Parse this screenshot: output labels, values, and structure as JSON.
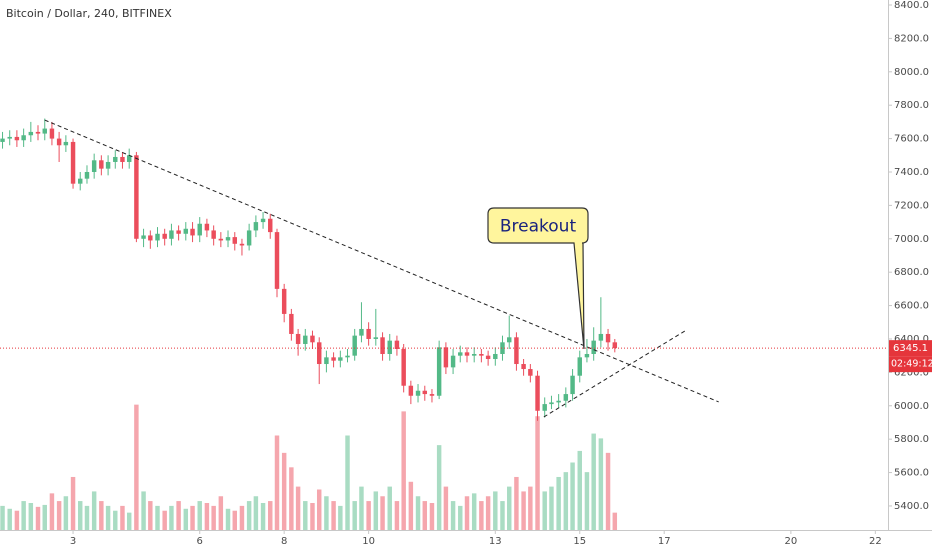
{
  "chart_data": {
    "type": "candlestick",
    "title": "Bitcoin / Dollar, 240, BITFINEX",
    "xlim": [
      1.27,
      22.3
    ],
    "xticks": [
      3,
      6,
      8,
      10,
      13,
      15,
      17,
      20,
      22
    ],
    "ylim": [
      5256,
      8430
    ],
    "yticks": [
      {
        "value": 5400,
        "label": "5400.0"
      },
      {
        "value": 5600,
        "label": "5600.0"
      },
      {
        "value": 5800,
        "label": "5800.0"
      },
      {
        "value": 6000,
        "label": "6000.0"
      },
      {
        "value": 6200,
        "label": "6200.0"
      },
      {
        "value": 6400,
        "label": "6400.0"
      },
      {
        "value": 6600,
        "label": "6600.0"
      },
      {
        "value": 6800,
        "label": "6800.0"
      },
      {
        "value": 7000,
        "label": "7000.0"
      },
      {
        "value": 7200,
        "label": "7200.0"
      },
      {
        "value": 7400,
        "label": "7400.0"
      },
      {
        "value": 7600,
        "label": "7600.0"
      },
      {
        "value": 7800,
        "label": "7800.0"
      },
      {
        "value": 8000,
        "label": "8000.0"
      },
      {
        "value": 8200,
        "label": "8200.0"
      },
      {
        "value": 8400,
        "label": "8400.0"
      }
    ],
    "up_color": "#53b987",
    "down_color": "#eb4d5c",
    "x": [
      1.33,
      1.5,
      1.67,
      1.83,
      2,
      2.17,
      2.33,
      2.5,
      2.67,
      2.83,
      3,
      3.17,
      3.33,
      3.5,
      3.67,
      3.83,
      4,
      4.17,
      4.33,
      4.5,
      4.67,
      4.83,
      5,
      5.17,
      5.33,
      5.5,
      5.67,
      5.83,
      6,
      6.17,
      6.33,
      6.5,
      6.67,
      6.83,
      7,
      7.17,
      7.33,
      7.5,
      7.67,
      7.83,
      8,
      8.17,
      8.33,
      8.5,
      8.67,
      8.83,
      9,
      9.17,
      9.33,
      9.5,
      9.67,
      9.83,
      10,
      10.17,
      10.33,
      10.5,
      10.67,
      10.83,
      11,
      11.17,
      11.33,
      11.5,
      11.67,
      11.83,
      12,
      12.17,
      12.33,
      12.5,
      12.67,
      12.83,
      13,
      13.17,
      13.33,
      13.5,
      13.67,
      13.83,
      14,
      14.17,
      14.33,
      14.5,
      14.67,
      14.83,
      15,
      15.17,
      15.33,
      15.5,
      15.67,
      15.83
    ],
    "open": [
      7580,
      7600,
      7610,
      7590,
      7620,
      7640,
      7630,
      7660,
      7600,
      7560,
      7580,
      7330,
      7360,
      7400,
      7470,
      7420,
      7460,
      7490,
      7460,
      7500,
      7000,
      7020,
      6990,
      7030,
      7000,
      7050,
      7030,
      7060,
      7020,
      7090,
      7050,
      7000,
      6990,
      7010,
      6970,
      6960,
      7050,
      7100,
      7120,
      7040,
      6700,
      6550,
      6430,
      6370,
      6420,
      6380,
      6250,
      6290,
      6270,
      6290,
      6300,
      6420,
      6460,
      6400,
      6410,
      6310,
      6390,
      6340,
      6120,
      6060,
      6090,
      6070,
      6060,
      6350,
      6230,
      6300,
      6320,
      6300,
      6310,
      6300,
      6280,
      6310,
      6380,
      6410,
      6250,
      6220,
      6180,
      5970,
      6010,
      6020,
      6030,
      6070,
      6180,
      6290,
      6310,
      6390,
      6430,
      6380
    ],
    "high": [
      7640,
      7650,
      7650,
      7660,
      7700,
      7680,
      7720,
      7700,
      7640,
      7620,
      7600,
      7400,
      7440,
      7510,
      7500,
      7500,
      7530,
      7520,
      7540,
      7520,
      7060,
      7050,
      7070,
      7060,
      7090,
      7080,
      7100,
      7100,
      7130,
      7120,
      7080,
      7040,
      7050,
      7040,
      7000,
      7090,
      7140,
      7160,
      7150,
      7060,
      6730,
      6580,
      6460,
      6460,
      6450,
      6410,
      6330,
      6320,
      6330,
      6340,
      6460,
      6620,
      6500,
      6580,
      6440,
      6430,
      6420,
      6370,
      6150,
      6130,
      6120,
      6100,
      6390,
      6380,
      6340,
      6360,
      6350,
      6350,
      6340,
      6330,
      6350,
      6420,
      6540,
      6440,
      6280,
      6250,
      6210,
      6050,
      6060,
      6070,
      6110,
      6220,
      6330,
      6400,
      6470,
      6650,
      6460,
      6400
    ],
    "low": [
      7540,
      7560,
      7550,
      7550,
      7580,
      7590,
      7590,
      7560,
      7460,
      7520,
      7300,
      7290,
      7330,
      7360,
      7380,
      7380,
      7420,
      7420,
      7420,
      6980,
      6950,
      6940,
      6950,
      6960,
      6960,
      6990,
      6990,
      6980,
      6980,
      7010,
      6960,
      6950,
      6950,
      6930,
      6900,
      6930,
      7010,
      7060,
      7000,
      6650,
      6500,
      6390,
      6300,
      6330,
      6340,
      6130,
      6200,
      6230,
      6230,
      6260,
      6270,
      6380,
      6360,
      6360,
      6270,
      6270,
      6300,
      6080,
      6010,
      6020,
      6030,
      6020,
      6040,
      6190,
      6190,
      6260,
      6260,
      6260,
      6260,
      6240,
      6240,
      6270,
      6340,
      6210,
      6180,
      6140,
      5910,
      5930,
      5980,
      5990,
      5990,
      6030,
      6140,
      6260,
      6270,
      6350,
      6330,
      6320
    ],
    "close": [
      7600,
      7610,
      7590,
      7620,
      7640,
      7630,
      7660,
      7600,
      7560,
      7580,
      7330,
      7360,
      7400,
      7470,
      7420,
      7460,
      7490,
      7460,
      7500,
      7000,
      7020,
      6990,
      7030,
      7000,
      7050,
      7030,
      7060,
      7020,
      7090,
      7050,
      7000,
      6990,
      7010,
      6970,
      6960,
      7050,
      7100,
      7120,
      7040,
      6700,
      6550,
      6430,
      6370,
      6420,
      6380,
      6250,
      6290,
      6270,
      6290,
      6300,
      6420,
      6460,
      6400,
      6410,
      6310,
      6390,
      6340,
      6120,
      6060,
      6090,
      6070,
      6060,
      6350,
      6230,
      6300,
      6320,
      6300,
      6310,
      6300,
      6280,
      6310,
      6380,
      6410,
      6250,
      6220,
      6180,
      5970,
      6010,
      6020,
      6030,
      6070,
      6180,
      6290,
      6310,
      6390,
      6430,
      6380,
      6345.1
    ],
    "volume_ylim": [
      0,
      140
    ],
    "volume": [
      25,
      22,
      20,
      30,
      28,
      24,
      26,
      38,
      30,
      35,
      55,
      30,
      25,
      40,
      30,
      25,
      20,
      25,
      18,
      130,
      40,
      30,
      25,
      20,
      25,
      30,
      22,
      25,
      30,
      28,
      25,
      35,
      22,
      20,
      25,
      30,
      35,
      28,
      30,
      98,
      80,
      65,
      45,
      30,
      28,
      42,
      35,
      30,
      25,
      98,
      30,
      45,
      30,
      40,
      35,
      45,
      30,
      123,
      50,
      35,
      30,
      28,
      88,
      45,
      30,
      25,
      35,
      38,
      30,
      35,
      40,
      30,
      45,
      55,
      40,
      45,
      118,
      40,
      45,
      55,
      60,
      70,
      82,
      60,
      100,
      95,
      80,
      18
    ],
    "last_price": {
      "value": 6345.1,
      "label": "6345.1",
      "countdown": "02:49:12",
      "color": "#e5353b"
    },
    "trend_lines": [
      {
        "x": [
          2.33,
          18.29
        ],
        "y": [
          7711,
          6023
        ]
      },
      {
        "x": [
          14.15,
          17.53
        ],
        "y": [
          5933,
          6454
        ]
      }
    ],
    "annotation": {
      "text": "Breakout",
      "x": 15.1,
      "y": 6340
    }
  }
}
